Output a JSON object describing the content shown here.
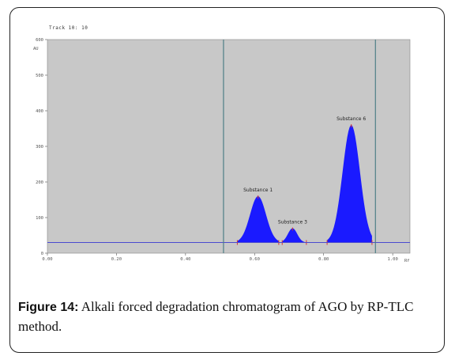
{
  "header": {
    "track_label": "Track 10: 10"
  },
  "caption": {
    "label": "Figure 14:",
    "text": " Alkali forced degradation chromatogram of AGO by RP-TLC method."
  },
  "colors": {
    "plot_bg": "#c8c8c8",
    "peak_fill": "#1a1aff",
    "baseline": "#4a4ad0",
    "front_line": "#4f7f86",
    "marker": "#d83030"
  },
  "chart_data": {
    "type": "area",
    "title": "",
    "xlabel": "Rf",
    "ylabel": "AU",
    "xlim": [
      0.0,
      1.05
    ],
    "ylim": [
      0,
      600
    ],
    "x_ticks": [
      {
        "value": 0.0,
        "label": "0.00"
      },
      {
        "value": 0.2,
        "label": "0.20"
      },
      {
        "value": 0.4,
        "label": "0.40"
      },
      {
        "value": 0.6,
        "label": "0.60"
      },
      {
        "value": 0.8,
        "label": "0.80"
      },
      {
        "value": 1.0,
        "label": "1.00"
      }
    ],
    "y_ticks": [
      {
        "value": 0,
        "label": "0"
      },
      {
        "value": 100,
        "label": "100"
      },
      {
        "value": 200,
        "label": "200"
      },
      {
        "value": 300,
        "label": "300"
      },
      {
        "value": 400,
        "label": "400"
      },
      {
        "value": 500,
        "label": "500"
      },
      {
        "value": 600,
        "label": "600"
      }
    ],
    "baseline": 30,
    "vertical_lines": [
      0.51,
      0.95
    ],
    "grid": false,
    "peaks": [
      {
        "name": "Substance 1",
        "rf": 0.61,
        "height": 160,
        "start": 0.55,
        "end": 0.67
      },
      {
        "name": "Substance 3",
        "rf": 0.71,
        "height": 70,
        "start": 0.68,
        "end": 0.75
      },
      {
        "name": "Substance 6",
        "rf": 0.88,
        "height": 360,
        "start": 0.81,
        "end": 0.94
      }
    ]
  }
}
